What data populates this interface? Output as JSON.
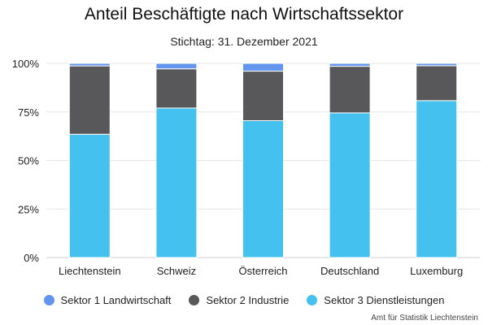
{
  "chart_data": {
    "type": "bar",
    "stacked": true,
    "title": "Anteil Beschäftigte nach Wirtschaftssektor",
    "subtitle": "Stichtag: 31. Dezember 2021",
    "categories": [
      "Liechtenstein",
      "Schweiz",
      "Österreich",
      "Deutschland",
      "Luxemburg"
    ],
    "series": [
      {
        "name": "Sektor 3 Dienstleistungen",
        "color": "#44c1ef",
        "values": [
          63.5,
          77.0,
          70.5,
          74.5,
          80.8
        ]
      },
      {
        "name": "Sektor 2 Industrie",
        "color": "#58585a",
        "values": [
          35.2,
          20.2,
          25.5,
          24.0,
          18.0
        ]
      },
      {
        "name": "Sektor 1 Landwirtschaft",
        "color": "#6495ee",
        "values": [
          1.3,
          2.8,
          4.0,
          1.5,
          1.2
        ]
      }
    ],
    "ylim": [
      0,
      100
    ],
    "yticks": [
      0,
      25,
      50,
      75,
      100
    ],
    "ytick_labels": [
      "0%",
      "25%",
      "50%",
      "75%",
      "100%"
    ],
    "grid": true,
    "legend_position": "bottom",
    "legend_order": [
      "Sektor 1 Landwirtschaft",
      "Sektor 2 Industrie",
      "Sektor 3 Dienstleistungen"
    ]
  },
  "source": "Amt für Statistik Liechtenstein"
}
